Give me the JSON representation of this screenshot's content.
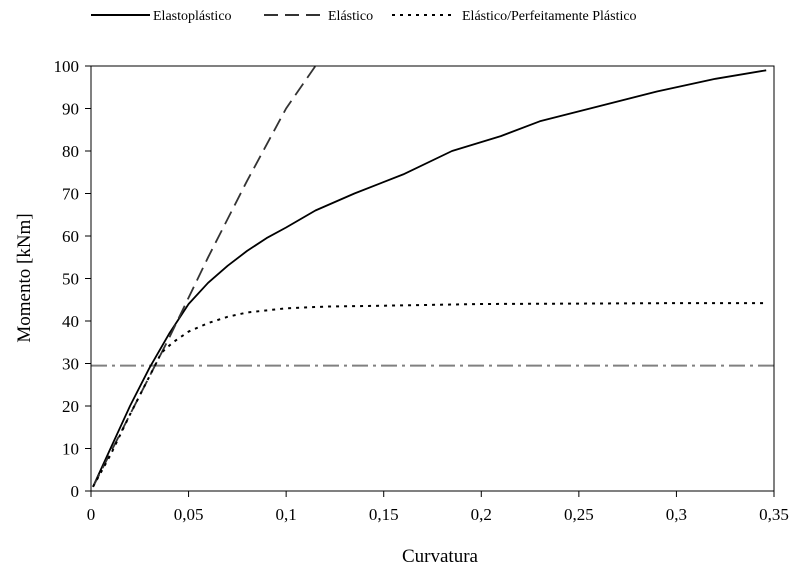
{
  "chart_data": {
    "type": "line",
    "xlabel": "Curvatura",
    "ylabel": "Momento [kNm]",
    "xlim": [
      0,
      0.35
    ],
    "ylim": [
      0,
      100
    ],
    "xticks": [
      0,
      0.05,
      0.1,
      0.15,
      0.2,
      0.25,
      0.3,
      0.35
    ],
    "xtick_labels": [
      "0",
      "0,05",
      "0,1",
      "0,15",
      "0,2",
      "0,25",
      "0,3",
      "0,35"
    ],
    "yticks": [
      0,
      10,
      20,
      30,
      40,
      50,
      60,
      70,
      80,
      90,
      100
    ],
    "ytick_labels": [
      "0",
      "10",
      "20",
      "30",
      "40",
      "50",
      "60",
      "70",
      "80",
      "90",
      "100"
    ],
    "grid": false,
    "legend_position": "top",
    "series": [
      {
        "name": "Elastoplástico",
        "style": "solid",
        "color": "#000000",
        "x": [
          0.001,
          0.01,
          0.02,
          0.03,
          0.04,
          0.05,
          0.06,
          0.07,
          0.08,
          0.09,
          0.1,
          0.115,
          0.135,
          0.16,
          0.185,
          0.21,
          0.23,
          0.26,
          0.29,
          0.32,
          0.346
        ],
        "y": [
          1,
          10,
          20,
          29,
          37,
          44,
          49,
          53,
          56.5,
          59.5,
          62,
          66,
          70,
          74.5,
          80,
          83.5,
          87,
          90.5,
          94,
          97,
          99
        ]
      },
      {
        "name": "Elástico",
        "style": "dashed",
        "color": "#333333",
        "x": [
          0.001,
          0.02,
          0.04,
          0.06,
          0.08,
          0.1,
          0.115
        ],
        "y": [
          1,
          18,
          36,
          55,
          73,
          90,
          100
        ]
      },
      {
        "name": "Elástico/Perfeitamente Plástico",
        "style": "dotted",
        "color": "#000000",
        "x": [
          0.001,
          0.01,
          0.02,
          0.03,
          0.036,
          0.042,
          0.05,
          0.06,
          0.07,
          0.08,
          0.1,
          0.12,
          0.15,
          0.2,
          0.25,
          0.3,
          0.346
        ],
        "y": [
          1,
          8.5,
          18,
          27,
          32.5,
          35,
          37.5,
          39.5,
          41,
          42,
          43,
          43.4,
          43.6,
          44,
          44.1,
          44.2,
          44.2
        ]
      }
    ],
    "reference_lines": [
      {
        "orientation": "horizontal",
        "value": 29.5,
        "style": "dash-dot",
        "color": "#808080"
      }
    ]
  }
}
